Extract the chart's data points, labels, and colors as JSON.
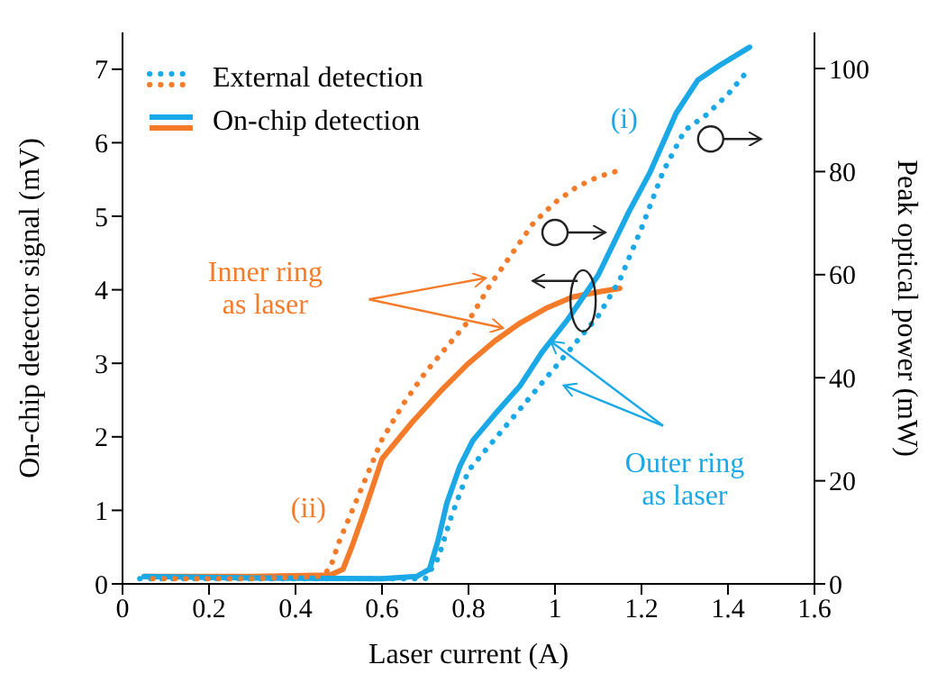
{
  "chart_data": {
    "type": "line",
    "xlabel": "Laser current (A)",
    "ylabel": "On-chip detector signal (mV)",
    "y2label": "Peak optical power (mW)",
    "xlim": [
      0,
      1.6
    ],
    "xticks": [
      0,
      0.2,
      0.4,
      0.6,
      0.8,
      1,
      1.2,
      1.4,
      1.6
    ],
    "ylim": [
      0,
      7.5
    ],
    "yticks": [
      0,
      1,
      2,
      3,
      4,
      5,
      6,
      7
    ],
    "y2lim": [
      0,
      107
    ],
    "y2ticks": [
      0,
      20,
      40,
      60,
      80,
      100
    ],
    "grid": false,
    "legend": "top left",
    "marker": "none",
    "series": [
      {
        "color": "#f47b2a",
        "axis": "y",
        "line_style": "solid",
        "x": [
          0.05,
          0.3,
          0.48,
          0.51,
          0.53,
          0.56,
          0.6,
          0.67,
          0.74,
          0.8,
          0.86,
          0.92,
          0.98,
          1.04,
          1.1,
          1.15
        ],
        "values": [
          0.1,
          0.1,
          0.12,
          0.2,
          0.5,
          1.0,
          1.7,
          2.2,
          2.65,
          3.0,
          3.3,
          3.55,
          3.75,
          3.9,
          3.97,
          4.02
        ]
      },
      {
        "name": "On-chip detection",
        "color": "#1aa9e6",
        "axis": "y",
        "line_style": "solid",
        "x": [
          0.05,
          0.3,
          0.6,
          0.68,
          0.71,
          0.73,
          0.75,
          0.78,
          0.81,
          0.86,
          0.92,
          0.97,
          1.03,
          1.1,
          1.17,
          1.22,
          1.28,
          1.33,
          1.38,
          1.45
        ],
        "values": [
          0.1,
          0.08,
          0.07,
          0.1,
          0.2,
          0.6,
          1.1,
          1.6,
          1.95,
          2.3,
          2.7,
          3.15,
          3.6,
          4.2,
          5.05,
          5.6,
          6.4,
          6.85,
          7.05,
          7.3
        ]
      },
      {
        "name": "External detection",
        "color": "#1aa9e6",
        "axis": "y2",
        "line_style": "dotted",
        "x": [
          0.04,
          0.4,
          0.7,
          0.73,
          0.76,
          0.8,
          0.85,
          0.9,
          0.95,
          1.0,
          1.05,
          1.1,
          1.15,
          1.2,
          1.25,
          1.3,
          1.35,
          1.4,
          1.45
        ],
        "values": [
          1,
          1,
          1,
          5,
          13,
          22,
          27,
          32,
          37,
          42,
          47,
          52,
          59,
          69,
          80,
          88,
          91,
          95,
          100
        ]
      },
      {
        "color": "#f47b2a",
        "axis": "y2",
        "line_style": "dotted",
        "x": [
          0.07,
          0.3,
          0.46,
          0.48,
          0.5,
          0.55,
          0.6,
          0.65,
          0.7,
          0.75,
          0.8,
          0.85,
          0.9,
          0.95,
          1.0,
          1.05,
          1.1,
          1.14
        ],
        "values": [
          1,
          1,
          1.5,
          3,
          8,
          18,
          28,
          35,
          41,
          46,
          51,
          58,
          64,
          70,
          74,
          77,
          79,
          80
        ]
      }
    ],
    "annotations": [
      "Inner ring\nas laser",
      {
        "text": "Outer ring\nas laser",
        "x": 0.99,
        "y": 3.3
      },
      "(i)",
      "(ii)"
    ]
  }
}
